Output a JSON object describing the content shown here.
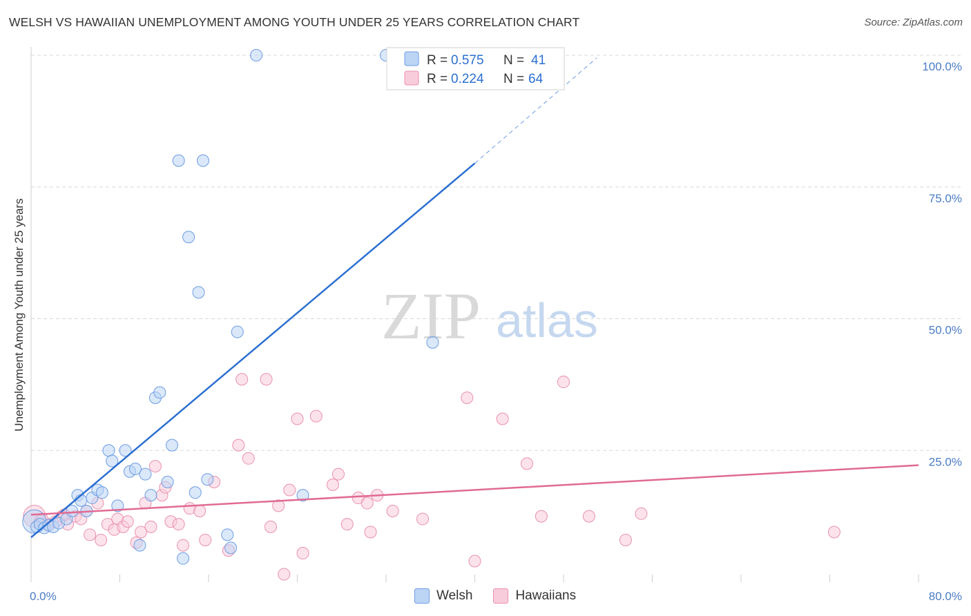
{
  "title": "WELSH VS HAWAIIAN UNEMPLOYMENT AMONG YOUTH UNDER 25 YEARS CORRELATION CHART",
  "source": "Source: ZipAtlas.com",
  "watermark": {
    "zip": "ZIP",
    "atlas": "atlas"
  },
  "colors": {
    "welsh_fill": "#bcd5f5",
    "welsh_stroke": "#6d9ce0",
    "welsh_line": "#2b6fd0",
    "haw_fill": "#f9ccdb",
    "haw_stroke": "#e890ad",
    "haw_line": "#e06a93",
    "grid": "#d8d8d8",
    "axis_text": "#4a7cc4"
  },
  "legend": {
    "welsh": {
      "r_label": "R =",
      "r_value": "0.575",
      "n_label": "N =",
      "n_value": "41"
    },
    "hawaiians": {
      "r_label": "R =",
      "r_value": "0.224",
      "n_label": "N =",
      "n_value": "64"
    }
  },
  "bottom_legend": {
    "welsh": "Welsh",
    "hawaiians": "Hawaiians"
  },
  "chart_data": {
    "type": "scatter",
    "title": "WELSH VS HAWAIIAN UNEMPLOYMENT AMONG YOUTH UNDER 25 YEARS CORRELATION CHART",
    "xlabel": "",
    "ylabel": "Unemployment Among Youth under 25 years",
    "xlim": [
      0,
      80
    ],
    "ylim": [
      0,
      100
    ],
    "x_tick_labels": [
      "0.0%",
      "80.0%"
    ],
    "y_tick_values": [
      25,
      50,
      75,
      100
    ],
    "y_tick_labels": [
      "25.0%",
      "50.0%",
      "75.0%",
      "100.0%"
    ],
    "series": [
      {
        "name": "Welsh",
        "R": 0.575,
        "N": 41,
        "trend": {
          "x0": 0,
          "y0": 8.5,
          "x1": 40,
          "y1": 79.5,
          "dash_to_x": 51,
          "dash_to_y": 99.5
        },
        "points": [
          {
            "x": 0.3,
            "y": 11.5,
            "big": true
          },
          {
            "x": 0.5,
            "y": 10.5
          },
          {
            "x": 0.8,
            "y": 11.0
          },
          {
            "x": 1.2,
            "y": 10.3
          },
          {
            "x": 1.6,
            "y": 10.8
          },
          {
            "x": 2.0,
            "y": 10.5
          },
          {
            "x": 2.5,
            "y": 11.2
          },
          {
            "x": 3.2,
            "y": 12.0
          },
          {
            "x": 3.7,
            "y": 13.5
          },
          {
            "x": 4.2,
            "y": 16.5
          },
          {
            "x": 4.5,
            "y": 15.5
          },
          {
            "x": 5.0,
            "y": 13.5
          },
          {
            "x": 5.5,
            "y": 16.0
          },
          {
            "x": 6.0,
            "y": 17.5
          },
          {
            "x": 6.4,
            "y": 17.0
          },
          {
            "x": 7.0,
            "y": 25.0
          },
          {
            "x": 7.3,
            "y": 23.0
          },
          {
            "x": 7.8,
            "y": 14.5
          },
          {
            "x": 8.5,
            "y": 25.0
          },
          {
            "x": 8.9,
            "y": 21.0
          },
          {
            "x": 9.4,
            "y": 21.5
          },
          {
            "x": 9.8,
            "y": 7.0
          },
          {
            "x": 10.3,
            "y": 20.5
          },
          {
            "x": 10.8,
            "y": 16.5
          },
          {
            "x": 11.2,
            "y": 35.0
          },
          {
            "x": 11.6,
            "y": 36.0
          },
          {
            "x": 12.3,
            "y": 19.0
          },
          {
            "x": 12.7,
            "y": 26.0
          },
          {
            "x": 13.3,
            "y": 80.0
          },
          {
            "x": 13.7,
            "y": 4.5
          },
          {
            "x": 14.2,
            "y": 65.5
          },
          {
            "x": 14.8,
            "y": 17.0
          },
          {
            "x": 15.1,
            "y": 55.0
          },
          {
            "x": 15.5,
            "y": 80.0
          },
          {
            "x": 15.9,
            "y": 19.5
          },
          {
            "x": 17.7,
            "y": 9.0
          },
          {
            "x": 18.0,
            "y": 6.5
          },
          {
            "x": 18.6,
            "y": 47.5
          },
          {
            "x": 20.3,
            "y": 100.0
          },
          {
            "x": 24.5,
            "y": 16.5
          },
          {
            "x": 32.0,
            "y": 100.0
          },
          {
            "x": 36.2,
            "y": 45.5
          }
        ]
      },
      {
        "name": "Hawaiians",
        "R": 0.224,
        "N": 64,
        "trend": {
          "x0": 0,
          "y0": 12.8,
          "x1": 80,
          "y1": 22.2
        },
        "points": [
          {
            "x": 0.3,
            "y": 12.5,
            "big": true
          },
          {
            "x": 0.8,
            "y": 11.5
          },
          {
            "x": 1.5,
            "y": 11.0
          },
          {
            "x": 2.2,
            "y": 11.5
          },
          {
            "x": 2.8,
            "y": 12.5
          },
          {
            "x": 3.3,
            "y": 11.0
          },
          {
            "x": 4.0,
            "y": 12.5
          },
          {
            "x": 4.5,
            "y": 12.0
          },
          {
            "x": 5.0,
            "y": 13.5
          },
          {
            "x": 5.3,
            "y": 9.0
          },
          {
            "x": 6.0,
            "y": 15.0
          },
          {
            "x": 6.3,
            "y": 8.0
          },
          {
            "x": 6.9,
            "y": 11.0
          },
          {
            "x": 7.5,
            "y": 10.0
          },
          {
            "x": 7.8,
            "y": 12.0
          },
          {
            "x": 8.3,
            "y": 10.5
          },
          {
            "x": 8.7,
            "y": 11.5
          },
          {
            "x": 9.5,
            "y": 7.5
          },
          {
            "x": 9.9,
            "y": 9.5
          },
          {
            "x": 10.3,
            "y": 15.0
          },
          {
            "x": 10.8,
            "y": 10.5
          },
          {
            "x": 11.2,
            "y": 22.0
          },
          {
            "x": 11.8,
            "y": 16.5
          },
          {
            "x": 12.1,
            "y": 18.0
          },
          {
            "x": 12.6,
            "y": 11.5
          },
          {
            "x": 13.3,
            "y": 11.0
          },
          {
            "x": 13.7,
            "y": 7.0
          },
          {
            "x": 14.3,
            "y": 14.0
          },
          {
            "x": 15.2,
            "y": 13.5
          },
          {
            "x": 15.7,
            "y": 8.0
          },
          {
            "x": 16.5,
            "y": 19.0
          },
          {
            "x": 17.8,
            "y": 6.0
          },
          {
            "x": 18.7,
            "y": 26.0
          },
          {
            "x": 19.0,
            "y": 38.5
          },
          {
            "x": 19.6,
            "y": 23.5
          },
          {
            "x": 21.2,
            "y": 38.5
          },
          {
            "x": 21.6,
            "y": 10.5
          },
          {
            "x": 22.3,
            "y": 14.5
          },
          {
            "x": 22.8,
            "y": 1.5
          },
          {
            "x": 23.3,
            "y": 17.5
          },
          {
            "x": 24.0,
            "y": 31.0
          },
          {
            "x": 24.5,
            "y": 5.5
          },
          {
            "x": 25.7,
            "y": 31.5
          },
          {
            "x": 27.2,
            "y": 18.5
          },
          {
            "x": 27.7,
            "y": 20.5
          },
          {
            "x": 28.5,
            "y": 11.0
          },
          {
            "x": 29.5,
            "y": 16.0
          },
          {
            "x": 30.3,
            "y": 15.0
          },
          {
            "x": 30.6,
            "y": 9.5
          },
          {
            "x": 31.2,
            "y": 16.5
          },
          {
            "x": 32.6,
            "y": 13.5
          },
          {
            "x": 35.3,
            "y": 12.0
          },
          {
            "x": 39.3,
            "y": 35.0
          },
          {
            "x": 40.0,
            "y": 4.0
          },
          {
            "x": 42.5,
            "y": 31.0
          },
          {
            "x": 44.7,
            "y": 22.5
          },
          {
            "x": 46.0,
            "y": 12.5
          },
          {
            "x": 48.0,
            "y": 38.0
          },
          {
            "x": 50.3,
            "y": 12.5
          },
          {
            "x": 53.6,
            "y": 8.0
          },
          {
            "x": 55.0,
            "y": 13.0
          },
          {
            "x": 72.4,
            "y": 9.5
          },
          {
            "x": 1.0,
            "y": 12.0
          },
          {
            "x": 3.0,
            "y": 12.8
          }
        ]
      }
    ]
  }
}
